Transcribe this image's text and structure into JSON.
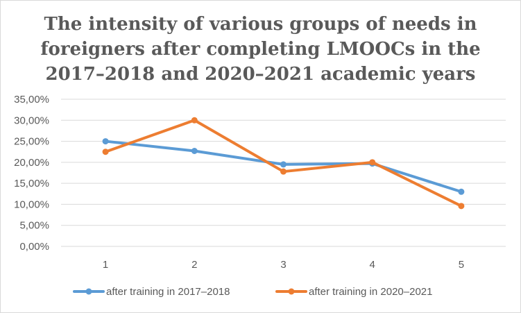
{
  "chart_data": {
    "type": "line",
    "title_lines": [
      "The intensity of various groups of needs in",
      "foreigners after completing LMOOCs in the",
      "2017–2018 and 2020–2021 academic years"
    ],
    "xlabel": "",
    "ylabel": "",
    "categories": [
      "1",
      "2",
      "3",
      "4",
      "5"
    ],
    "y_ticks": [
      "0,00%",
      "5,00%",
      "10,00%",
      "15,00%",
      "20,00%",
      "25,00%",
      "30,00%",
      "35,00%"
    ],
    "ylim": [
      0,
      35
    ],
    "grid": true,
    "legend_position": "bottom",
    "series": [
      {
        "name": "after training in 2017–2018",
        "color": "#5b9bd5",
        "values": [
          25.0,
          22.7,
          19.5,
          19.7,
          13.0
        ]
      },
      {
        "name": "after training in 2020–2021",
        "color": "#ed7d31",
        "values": [
          22.5,
          30.0,
          17.8,
          20.0,
          9.6
        ]
      }
    ]
  }
}
